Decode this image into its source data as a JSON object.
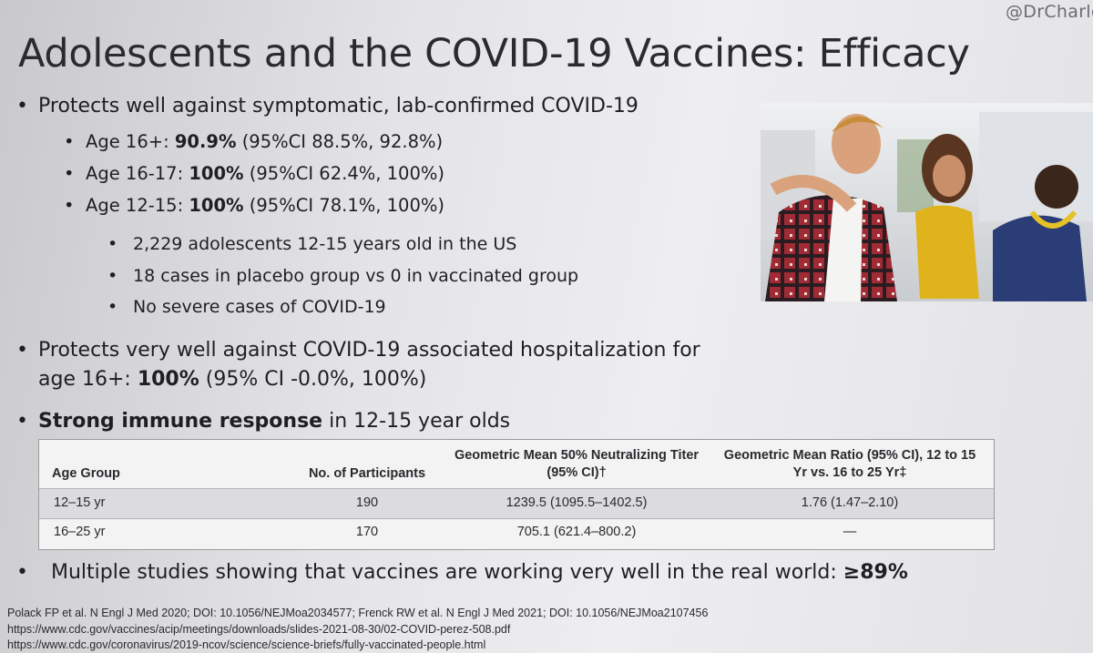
{
  "watermark": "@DrCharle",
  "title": "Adolescents and the COVID-19 Vaccines: Efficacy",
  "bullets": [
    {
      "text": "Protects well against symptomatic, lab-confirmed COVID-19",
      "sub": [
        {
          "prefix": "Age 16+: ",
          "bold": "90.9%",
          "suffix": " (95%CI 88.5%, 92.8%)"
        },
        {
          "prefix": "Age 16-17: ",
          "bold": "100%",
          "suffix": " (95%CI 62.4%, 100%)"
        },
        {
          "prefix": "Age 12-15: ",
          "bold": "100%",
          "suffix": " (95%CI 78.1%, 100%)"
        }
      ],
      "subsub": [
        "2,229 adolescents 12-15 years old in the US",
        "18 cases in placebo group vs 0 in vaccinated group",
        "No severe cases of COVID-19"
      ]
    },
    {
      "line1": "Protects very well against COVID-19 associated hospitalization for",
      "line2_prefix": "age 16+: ",
      "line2_bold": "100%",
      "line2_suffix": " (95% CI -0.0%, 100%)"
    },
    {
      "bold": "Strong immune response",
      "rest": " in 12-15 year olds"
    },
    {
      "text": "Multiple studies showing that vaccines are working very well in the real world: ",
      "bold": "≥89%"
    }
  ],
  "table": {
    "headers": [
      "Age Group",
      "No. of Participants",
      "Geometric Mean 50% Neutralizing Titer (95% CI)†",
      "Geometric Mean Ratio (95% CI), 12 to 15 Yr vs. 16 to 25 Yr‡"
    ],
    "rows": [
      [
        "12–15 yr",
        "190",
        "1239.5 (1095.5–1402.5)",
        "1.76 (1.47–2.10)"
      ],
      [
        "16–25 yr",
        "170",
        "705.1 (621.4–800.2)",
        "—"
      ]
    ]
  },
  "references": [
    "Polack FP et al. N Engl J Med 2020; DOI: 10.1056/NEJMoa2034577; Frenck RW et al. N Engl J Med 2021; DOI: 10.1056/NEJMoa2107456",
    "https://www.cdc.gov/vaccines/acip/meetings/downloads/slides-2021-08-30/02-COVID-perez-508.pdf",
    "https://www.cdc.gov/coronavirus/2019-ncov/science/science-briefs/fully-vaccinated-people.html"
  ]
}
